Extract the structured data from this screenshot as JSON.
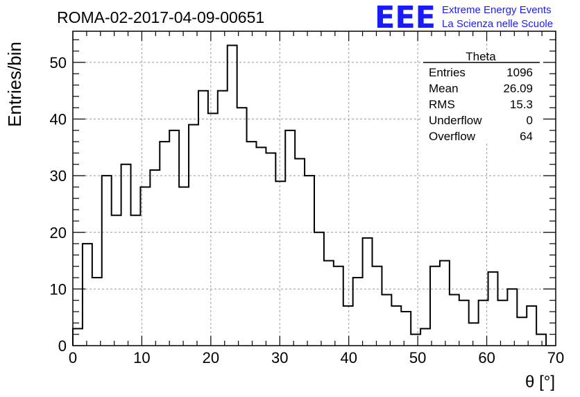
{
  "chart_data": {
    "type": "bar",
    "title": "ROMA-02-2017-04-09-00651",
    "xlabel": "θ [°]",
    "ylabel": "Entries/bin",
    "xlim": [
      0,
      70
    ],
    "ylim": [
      0,
      55.5
    ],
    "xticks": [
      0,
      10,
      20,
      30,
      40,
      50,
      60,
      70
    ],
    "yticks": [
      0,
      10,
      20,
      30,
      40,
      50
    ],
    "grid": true,
    "bin_width": 1.4,
    "bin_start": 0,
    "values": [
      3,
      18,
      12,
      30,
      23,
      32,
      23,
      28,
      31,
      36,
      38,
      28,
      39,
      45,
      41,
      45,
      53,
      42,
      36,
      35,
      34,
      29,
      38,
      33,
      30,
      20,
      15,
      14,
      7,
      12,
      19,
      14,
      9,
      7,
      6,
      2,
      3,
      14,
      15,
      9,
      8,
      4,
      8,
      13,
      8,
      10,
      5,
      7,
      2
    ],
    "stats_box": {
      "title": "Theta",
      "rows": [
        {
          "label": "Entries",
          "value": "1096"
        },
        {
          "label": "Mean",
          "value": "26.09"
        },
        {
          "label": "RMS",
          "value": "15.3"
        },
        {
          "label": "Underflow",
          "value": "0"
        },
        {
          "label": "Overflow",
          "value": "64"
        }
      ]
    }
  },
  "logo": {
    "letters": "EEE",
    "line1": "Extreme Energy Events",
    "line2": "La Scienza nelle Scuole"
  },
  "colors": {
    "line": "#000000",
    "grid": "#9a9a9a",
    "logo": "#1a1aff"
  }
}
